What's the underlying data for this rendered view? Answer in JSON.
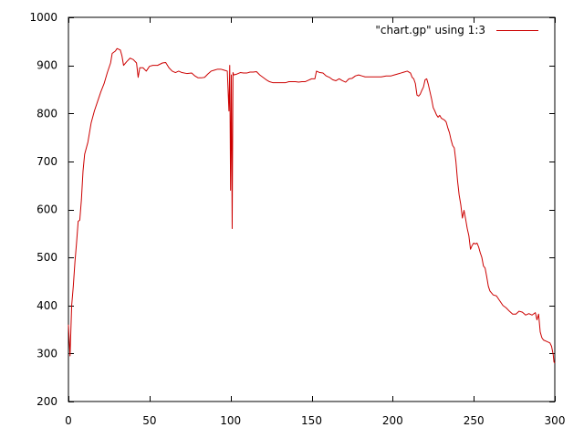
{
  "chart_data": {
    "type": "line",
    "title": "",
    "xlabel": "",
    "ylabel": "",
    "xlim": [
      0,
      300
    ],
    "ylim": [
      200,
      1000
    ],
    "xticks": [
      0,
      50,
      100,
      150,
      200,
      250,
      300
    ],
    "yticks": [
      200,
      300,
      400,
      500,
      600,
      700,
      800,
      900,
      1000
    ],
    "grid": false,
    "legend_position": "top-right",
    "series": [
      {
        "name": "\"chart.gp\" using 1:3",
        "color": "#cc0000",
        "points": [
          [
            0,
            360
          ],
          [
            1,
            295
          ],
          [
            2,
            400
          ],
          [
            3,
            440
          ],
          [
            4,
            490
          ],
          [
            5,
            530
          ],
          [
            6,
            575
          ],
          [
            7,
            578
          ],
          [
            8,
            620
          ],
          [
            9,
            680
          ],
          [
            10,
            715
          ],
          [
            12,
            740
          ],
          [
            14,
            780
          ],
          [
            16,
            805
          ],
          [
            18,
            825
          ],
          [
            20,
            845
          ],
          [
            22,
            862
          ],
          [
            24,
            885
          ],
          [
            26,
            905
          ],
          [
            27,
            925
          ],
          [
            29,
            930
          ],
          [
            30,
            935
          ],
          [
            32,
            932
          ],
          [
            33,
            920
          ],
          [
            34,
            900
          ],
          [
            36,
            908
          ],
          [
            38,
            915
          ],
          [
            40,
            912
          ],
          [
            42,
            905
          ],
          [
            43,
            875
          ],
          [
            44,
            895
          ],
          [
            46,
            895
          ],
          [
            48,
            888
          ],
          [
            50,
            898
          ],
          [
            52,
            900
          ],
          [
            55,
            900
          ],
          [
            58,
            905
          ],
          [
            60,
            906
          ],
          [
            62,
            895
          ],
          [
            64,
            888
          ],
          [
            66,
            885
          ],
          [
            68,
            888
          ],
          [
            70,
            885
          ],
          [
            73,
            883
          ],
          [
            76,
            884
          ],
          [
            78,
            878
          ],
          [
            80,
            874
          ],
          [
            82,
            874
          ],
          [
            84,
            875
          ],
          [
            86,
            882
          ],
          [
            88,
            888
          ],
          [
            90,
            890
          ],
          [
            92,
            892
          ],
          [
            94,
            892
          ],
          [
            96,
            890
          ],
          [
            98,
            888
          ],
          [
            99,
            805
          ],
          [
            99.5,
            900
          ],
          [
            100,
            640
          ],
          [
            100.5,
            880
          ],
          [
            101,
            560
          ],
          [
            101.5,
            885
          ],
          [
            102,
            880
          ],
          [
            104,
            882
          ],
          [
            106,
            885
          ],
          [
            108,
            884
          ],
          [
            110,
            884
          ],
          [
            112,
            886
          ],
          [
            114,
            886
          ],
          [
            116,
            887
          ],
          [
            118,
            880
          ],
          [
            120,
            875
          ],
          [
            122,
            870
          ],
          [
            124,
            866
          ],
          [
            126,
            864
          ],
          [
            128,
            864
          ],
          [
            130,
            864
          ],
          [
            132,
            864
          ],
          [
            134,
            864
          ],
          [
            136,
            866
          ],
          [
            138,
            866
          ],
          [
            140,
            866
          ],
          [
            142,
            865
          ],
          [
            144,
            866
          ],
          [
            146,
            866
          ],
          [
            148,
            869
          ],
          [
            150,
            872
          ],
          [
            152,
            872
          ],
          [
            153,
            888
          ],
          [
            155,
            885
          ],
          [
            157,
            884
          ],
          [
            159,
            878
          ],
          [
            161,
            875
          ],
          [
            163,
            870
          ],
          [
            165,
            868
          ],
          [
            167,
            872
          ],
          [
            169,
            868
          ],
          [
            171,
            865
          ],
          [
            173,
            872
          ],
          [
            175,
            873
          ],
          [
            177,
            878
          ],
          [
            179,
            880
          ],
          [
            181,
            878
          ],
          [
            183,
            876
          ],
          [
            185,
            876
          ],
          [
            187,
            876
          ],
          [
            190,
            876
          ],
          [
            193,
            876
          ],
          [
            196,
            878
          ],
          [
            199,
            878
          ],
          [
            201,
            880
          ],
          [
            203,
            882
          ],
          [
            205,
            884
          ],
          [
            207,
            886
          ],
          [
            209,
            888
          ],
          [
            211,
            884
          ],
          [
            212,
            875
          ],
          [
            213,
            872
          ],
          [
            214,
            862
          ],
          [
            215,
            838
          ],
          [
            216,
            836
          ],
          [
            217,
            840
          ],
          [
            218,
            848
          ],
          [
            219,
            855
          ],
          [
            220,
            870
          ],
          [
            221,
            872
          ],
          [
            222,
            860
          ],
          [
            223,
            845
          ],
          [
            224,
            830
          ],
          [
            225,
            812
          ],
          [
            226,
            805
          ],
          [
            227,
            797
          ],
          [
            228,
            792
          ],
          [
            229,
            796
          ],
          [
            230,
            790
          ],
          [
            231,
            788
          ],
          [
            232,
            786
          ],
          [
            233,
            782
          ],
          [
            234,
            770
          ],
          [
            235,
            760
          ],
          [
            236,
            745
          ],
          [
            237,
            733
          ],
          [
            238,
            728
          ],
          [
            239,
            700
          ],
          [
            240,
            660
          ],
          [
            241,
            630
          ],
          [
            242,
            610
          ],
          [
            243,
            582
          ],
          [
            244,
            598
          ],
          [
            245,
            580
          ],
          [
            246,
            560
          ],
          [
            247,
            545
          ],
          [
            248,
            517
          ],
          [
            249,
            525
          ],
          [
            250,
            530
          ],
          [
            251,
            528
          ],
          [
            252,
            530
          ],
          [
            253,
            522
          ],
          [
            254,
            510
          ],
          [
            255,
            500
          ],
          [
            256,
            482
          ],
          [
            257,
            478
          ],
          [
            258,
            460
          ],
          [
            259,
            440
          ],
          [
            260,
            430
          ],
          [
            262,
            422
          ],
          [
            264,
            420
          ],
          [
            266,
            410
          ],
          [
            268,
            400
          ],
          [
            270,
            395
          ],
          [
            272,
            388
          ],
          [
            274,
            382
          ],
          [
            276,
            382
          ],
          [
            278,
            388
          ],
          [
            280,
            386
          ],
          [
            282,
            380
          ],
          [
            284,
            383
          ],
          [
            286,
            380
          ],
          [
            288,
            385
          ],
          [
            289,
            370
          ],
          [
            290,
            382
          ],
          [
            291,
            345
          ],
          [
            292,
            333
          ],
          [
            293,
            328
          ],
          [
            295,
            325
          ],
          [
            297,
            322
          ],
          [
            298,
            315
          ],
          [
            299,
            298
          ],
          [
            299.5,
            282
          ],
          [
            300,
            280
          ]
        ]
      }
    ]
  }
}
